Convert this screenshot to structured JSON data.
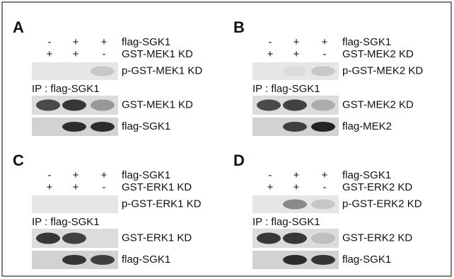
{
  "panels": [
    {
      "letter": "A",
      "treatments": [
        {
          "signs": [
            "-",
            "+",
            "+"
          ],
          "label": "flag-SGK1"
        },
        {
          "signs": [
            "+",
            "+",
            "-"
          ],
          "label": "GST-MEK1 KD"
        }
      ],
      "blots": [
        "p-GST-MEK1 KD",
        "GST-MEK1 KD",
        "flag-SGK1"
      ],
      "ip": "IP : flag-SGK1"
    },
    {
      "letter": "B",
      "treatments": [
        {
          "signs": [
            "-",
            "+",
            "+"
          ],
          "label": "flag-SGK1"
        },
        {
          "signs": [
            "+",
            "+",
            "-"
          ],
          "label": "GST-MEK2 KD"
        }
      ],
      "blots": [
        "p-GST-MEK2 KD",
        "GST-MEK2 KD",
        "flag-MEK2"
      ],
      "ip": "IP : flag-SGK1"
    },
    {
      "letter": "C",
      "treatments": [
        {
          "signs": [
            "-",
            "+",
            "+"
          ],
          "label": "flag-SGK1"
        },
        {
          "signs": [
            "+",
            "+",
            "-"
          ],
          "label": "GST-ERK1 KD"
        }
      ],
      "blots": [
        "p-GST-ERK1 KD",
        "GST-ERK1 KD",
        "flag-SGK1"
      ],
      "ip": "IP : flag-SGK1"
    },
    {
      "letter": "D",
      "treatments": [
        {
          "signs": [
            "-",
            "+",
            "+"
          ],
          "label": "flag-SGK1"
        },
        {
          "signs": [
            "+",
            "+",
            "-"
          ],
          "label": "GST-ERK2 KD"
        }
      ],
      "blots": [
        "p-GST-ERK2 KD",
        "GST-ERK2 KD",
        "flag-SGK1"
      ],
      "ip": "IP : flag-SGK1"
    }
  ]
}
